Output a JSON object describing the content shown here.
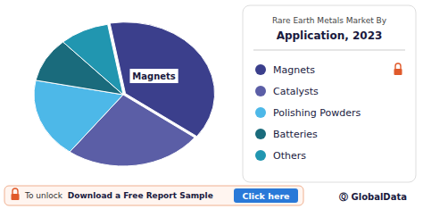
{
  "chart_data": {
    "type": "pie",
    "title": "Rare Earth Metals Market By",
    "subtitle": "Application, 2023",
    "categories": [
      "Magnets",
      "Catalysts",
      "Polishing Powders",
      "Batteries",
      "Others"
    ],
    "values": [
      38,
      25,
      18,
      10,
      9
    ],
    "colors": [
      "#3b3f8c",
      "#5b5ea6",
      "#4db8e8",
      "#1a6b7c",
      "#2196b0"
    ],
    "legend": "right",
    "annotations": [
      "Magnets",
      "To unlock ",
      "Download a Free Report Sample",
      "Click here",
      "Ⓠ GlobalData"
    ]
  }
}
